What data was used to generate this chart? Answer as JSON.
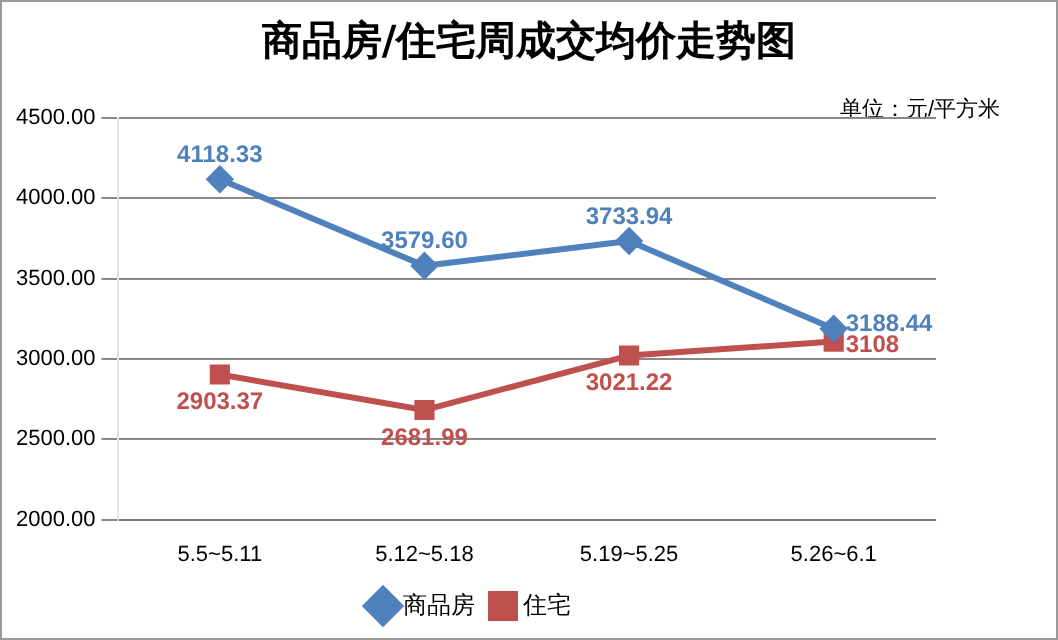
{
  "chart_data": {
    "type": "line",
    "title": "商品房/住宅周成交均价走势图",
    "categories": [
      "5.5~5.11",
      "5.12~5.18",
      "5.19~5.25",
      "5.26~6.1"
    ],
    "series": [
      {
        "name": "商品房",
        "color": "#4f81bd",
        "values": [
          4118.33,
          3579.6,
          3733.94,
          3188.44
        ],
        "value_labels": [
          "4118.33",
          "3579.60",
          "3733.94",
          "3188.44"
        ],
        "marker": "diamond"
      },
      {
        "name": "住宅",
        "color": "#c0504d",
        "values": [
          2903.37,
          2681.99,
          3021.22,
          3108
        ],
        "value_labels": [
          "2903.37",
          "2681.99",
          "3021.22",
          "3108"
        ],
        "marker": "square"
      }
    ],
    "ylim": [
      2000,
      4500
    ],
    "yticks": [
      {
        "value": 2000,
        "label": "2000.00"
      },
      {
        "value": 2500,
        "label": "2500.00"
      },
      {
        "value": 3000,
        "label": "3000.00"
      },
      {
        "value": 3500,
        "label": "3500.00"
      },
      {
        "value": 4000,
        "label": "4000.00"
      },
      {
        "value": 4500,
        "label": "4500.00"
      }
    ],
    "grid": "y",
    "legend": "bottom",
    "line_style": "solid",
    "annotations": [
      "单位：元/平方米"
    ]
  }
}
